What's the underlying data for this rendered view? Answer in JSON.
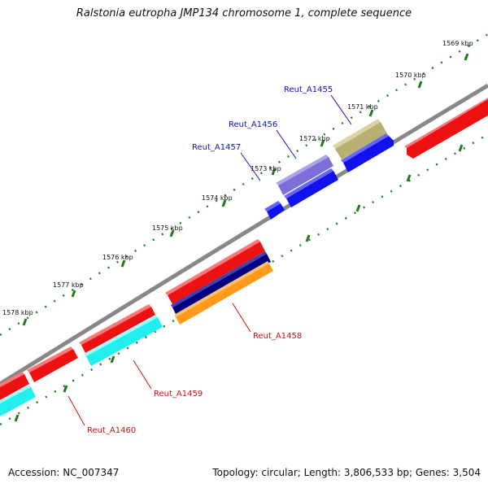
{
  "title": "Ralstonia eutropha JMP134 chromosome 1, complete sequence",
  "footer": {
    "accession": "Accession: NC_007347",
    "topology": "Topology: circular; Length: 3,806,533 bp; Genes: 3,504"
  },
  "ticks": [
    "1569 kbp",
    "1570 kbp",
    "1571 kbp",
    "1572 kbp",
    "1573 kbp",
    "1574 kbp",
    "1575 kbp",
    "1576 kbp",
    "1577 kbp",
    "1578 kbp"
  ],
  "gene_labels": [
    "Reut_A1455",
    "Reut_A1456",
    "Reut_A1457",
    "Reut_A1458",
    "Reut_A1459",
    "Reut_A1460"
  ],
  "colors": {
    "backbone": "#888888",
    "tick": "#1f7a1f",
    "forward_label": "#1010c8",
    "reverse_label": "#d01010",
    "gene_red": "#ee1111",
    "gene_blue": "#1111ee",
    "gene_purple": "#7b6fd8",
    "gene_olive": "#b8b070",
    "gene_navy": "#000080",
    "gene_orange": "#ff9a1a",
    "gene_cyan": "#22eeee"
  }
}
